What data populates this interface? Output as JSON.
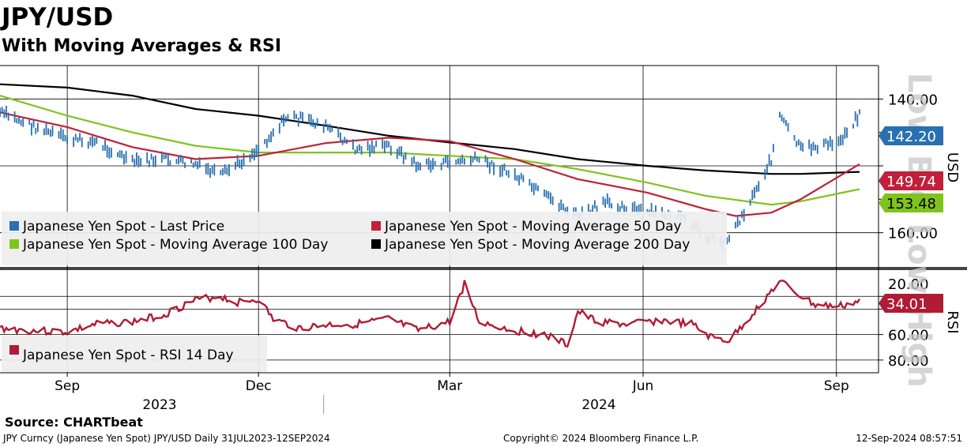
{
  "header": {
    "title": "JPY/USD",
    "subtitle": "With Moving Averages & RSI"
  },
  "watermark": "Low  Bid  Low  High",
  "source": "Source: CHARTbeat",
  "footer": {
    "left": "JPY Curncy (Japanese Yen Spot) JPY/USD  Daily 31JUL2023-12SEP2024",
    "center": "Copyright© 2024 Bloomberg Finance L.P.",
    "right": "12-Sep-2024 08:57:51"
  },
  "colors": {
    "price": "#2a6fb0",
    "ma50": "#c0203a",
    "ma100": "#7fc41c",
    "ma200": "#000000",
    "rsi": "#b01b35",
    "grid": "#000000",
    "legend_bg": "#eeeeee"
  },
  "chart_data": [
    {
      "type": "line",
      "title": "Japanese Yen Spot",
      "ylabel": "USD",
      "y_inverted": true,
      "ylim": [
        165,
        135
      ],
      "y_ticks": [
        "140.00",
        "160.00"
      ],
      "x_ticks": [
        "Sep",
        "Dec",
        "Mar",
        "Jun",
        "Sep"
      ],
      "x_years": [
        "2023",
        "2024"
      ],
      "x_range": [
        "2023-07-31",
        "2024-09-12"
      ],
      "grid": true,
      "legend_position": "bottom-left",
      "series": [
        {
          "name": "Japanese Yen Spot - Last Price",
          "last": "142.20",
          "x": [
            "2023-07-31",
            "2023-08-15",
            "2023-09-01",
            "2023-09-15",
            "2023-10-02",
            "2023-10-16",
            "2023-11-01",
            "2023-11-13",
            "2023-12-01",
            "2023-12-15",
            "2024-01-02",
            "2024-01-16",
            "2024-02-01",
            "2024-02-15",
            "2024-03-01",
            "2024-03-15",
            "2024-04-01",
            "2024-04-15",
            "2024-05-01",
            "2024-05-15",
            "2024-06-03",
            "2024-06-17",
            "2024-07-01",
            "2024-07-10",
            "2024-07-19",
            "2024-08-01",
            "2024-08-05",
            "2024-08-15",
            "2024-09-02",
            "2024-09-12"
          ],
          "values": [
            142.0,
            144.0,
            146.0,
            146.5,
            149.5,
            149.0,
            149.8,
            151.5,
            147.5,
            142.5,
            144.0,
            147.5,
            147.0,
            150.0,
            149.5,
            149.0,
            151.5,
            154.5,
            157.5,
            155.5,
            157.0,
            157.5,
            160.5,
            161.5,
            157.0,
            149.0,
            142.5,
            147.5,
            146.5,
            142.2
          ]
        },
        {
          "name": "Japanese Yen Spot - Moving Average 50 Day",
          "last": "149.74",
          "x": [
            "2023-07-31",
            "2023-09-01",
            "2023-10-02",
            "2023-11-01",
            "2023-12-01",
            "2024-01-02",
            "2024-02-01",
            "2024-03-01",
            "2024-04-01",
            "2024-05-01",
            "2024-06-03",
            "2024-07-01",
            "2024-07-15",
            "2024-08-01",
            "2024-08-15",
            "2024-09-12"
          ],
          "values": [
            142.0,
            144.2,
            147.2,
            149.0,
            148.5,
            146.6,
            145.8,
            146.3,
            149.0,
            152.0,
            154.0,
            156.5,
            157.5,
            157.0,
            155.0,
            149.74
          ]
        },
        {
          "name": "Japanese Yen Spot - Moving Average 100 Day",
          "last": "153.48",
          "x": [
            "2023-07-31",
            "2023-09-01",
            "2023-10-02",
            "2023-11-01",
            "2023-12-01",
            "2024-01-02",
            "2024-02-01",
            "2024-03-01",
            "2024-04-01",
            "2024-05-01",
            "2024-06-03",
            "2024-07-01",
            "2024-08-01",
            "2024-08-15",
            "2024-09-12"
          ],
          "values": [
            139.5,
            142.5,
            145.0,
            147.0,
            148.0,
            148.0,
            148.0,
            148.5,
            149.0,
            150.5,
            152.5,
            154.5,
            155.8,
            155.3,
            153.48
          ]
        },
        {
          "name": "Japanese Yen Spot - Moving Average 200 Day",
          "last": "150.9",
          "x": [
            "2023-07-31",
            "2023-09-01",
            "2023-10-02",
            "2023-11-01",
            "2023-12-01",
            "2024-01-02",
            "2024-02-01",
            "2024-03-01",
            "2024-04-01",
            "2024-05-01",
            "2024-06-03",
            "2024-07-01",
            "2024-08-01",
            "2024-08-15",
            "2024-09-12"
          ],
          "values": [
            137.8,
            138.3,
            139.5,
            141.5,
            142.5,
            144.0,
            145.5,
            146.5,
            147.5,
            149.0,
            150.0,
            150.7,
            151.2,
            151.2,
            150.9
          ]
        }
      ]
    },
    {
      "type": "line",
      "title": "RSI",
      "ylabel": "RSI",
      "y_inverted": true,
      "ylim": [
        90,
        10
      ],
      "y_ticks": [
        "20.00",
        "60.00",
        "80.00"
      ],
      "grid": true,
      "legend_position": "bottom-left",
      "series": [
        {
          "name": "Japanese Yen Spot - RSI 14 Day",
          "last": "34.01",
          "x": [
            "2023-07-31",
            "2023-08-15",
            "2023-09-01",
            "2023-09-15",
            "2023-10-02",
            "2023-10-16",
            "2023-11-01",
            "2023-11-13",
            "2023-11-20",
            "2023-12-01",
            "2023-12-08",
            "2023-12-20",
            "2024-01-05",
            "2024-01-16",
            "2024-02-01",
            "2024-02-15",
            "2024-03-01",
            "2024-03-08",
            "2024-03-15",
            "2024-04-01",
            "2024-04-15",
            "2024-04-26",
            "2024-05-01",
            "2024-05-10",
            "2024-05-24",
            "2024-06-10",
            "2024-06-24",
            "2024-07-03",
            "2024-07-12",
            "2024-07-25",
            "2024-08-05",
            "2024-08-15",
            "2024-08-22",
            "2024-09-02",
            "2024-09-12"
          ],
          "values": [
            55,
            57,
            58,
            52,
            50,
            45,
            33,
            30,
            35,
            32,
            48,
            55,
            52,
            52,
            48,
            57,
            50,
            20,
            50,
            57,
            60,
            68,
            42,
            50,
            52,
            49,
            52,
            62,
            65,
            40,
            18,
            30,
            37,
            38,
            34.01
          ]
        }
      ]
    }
  ]
}
